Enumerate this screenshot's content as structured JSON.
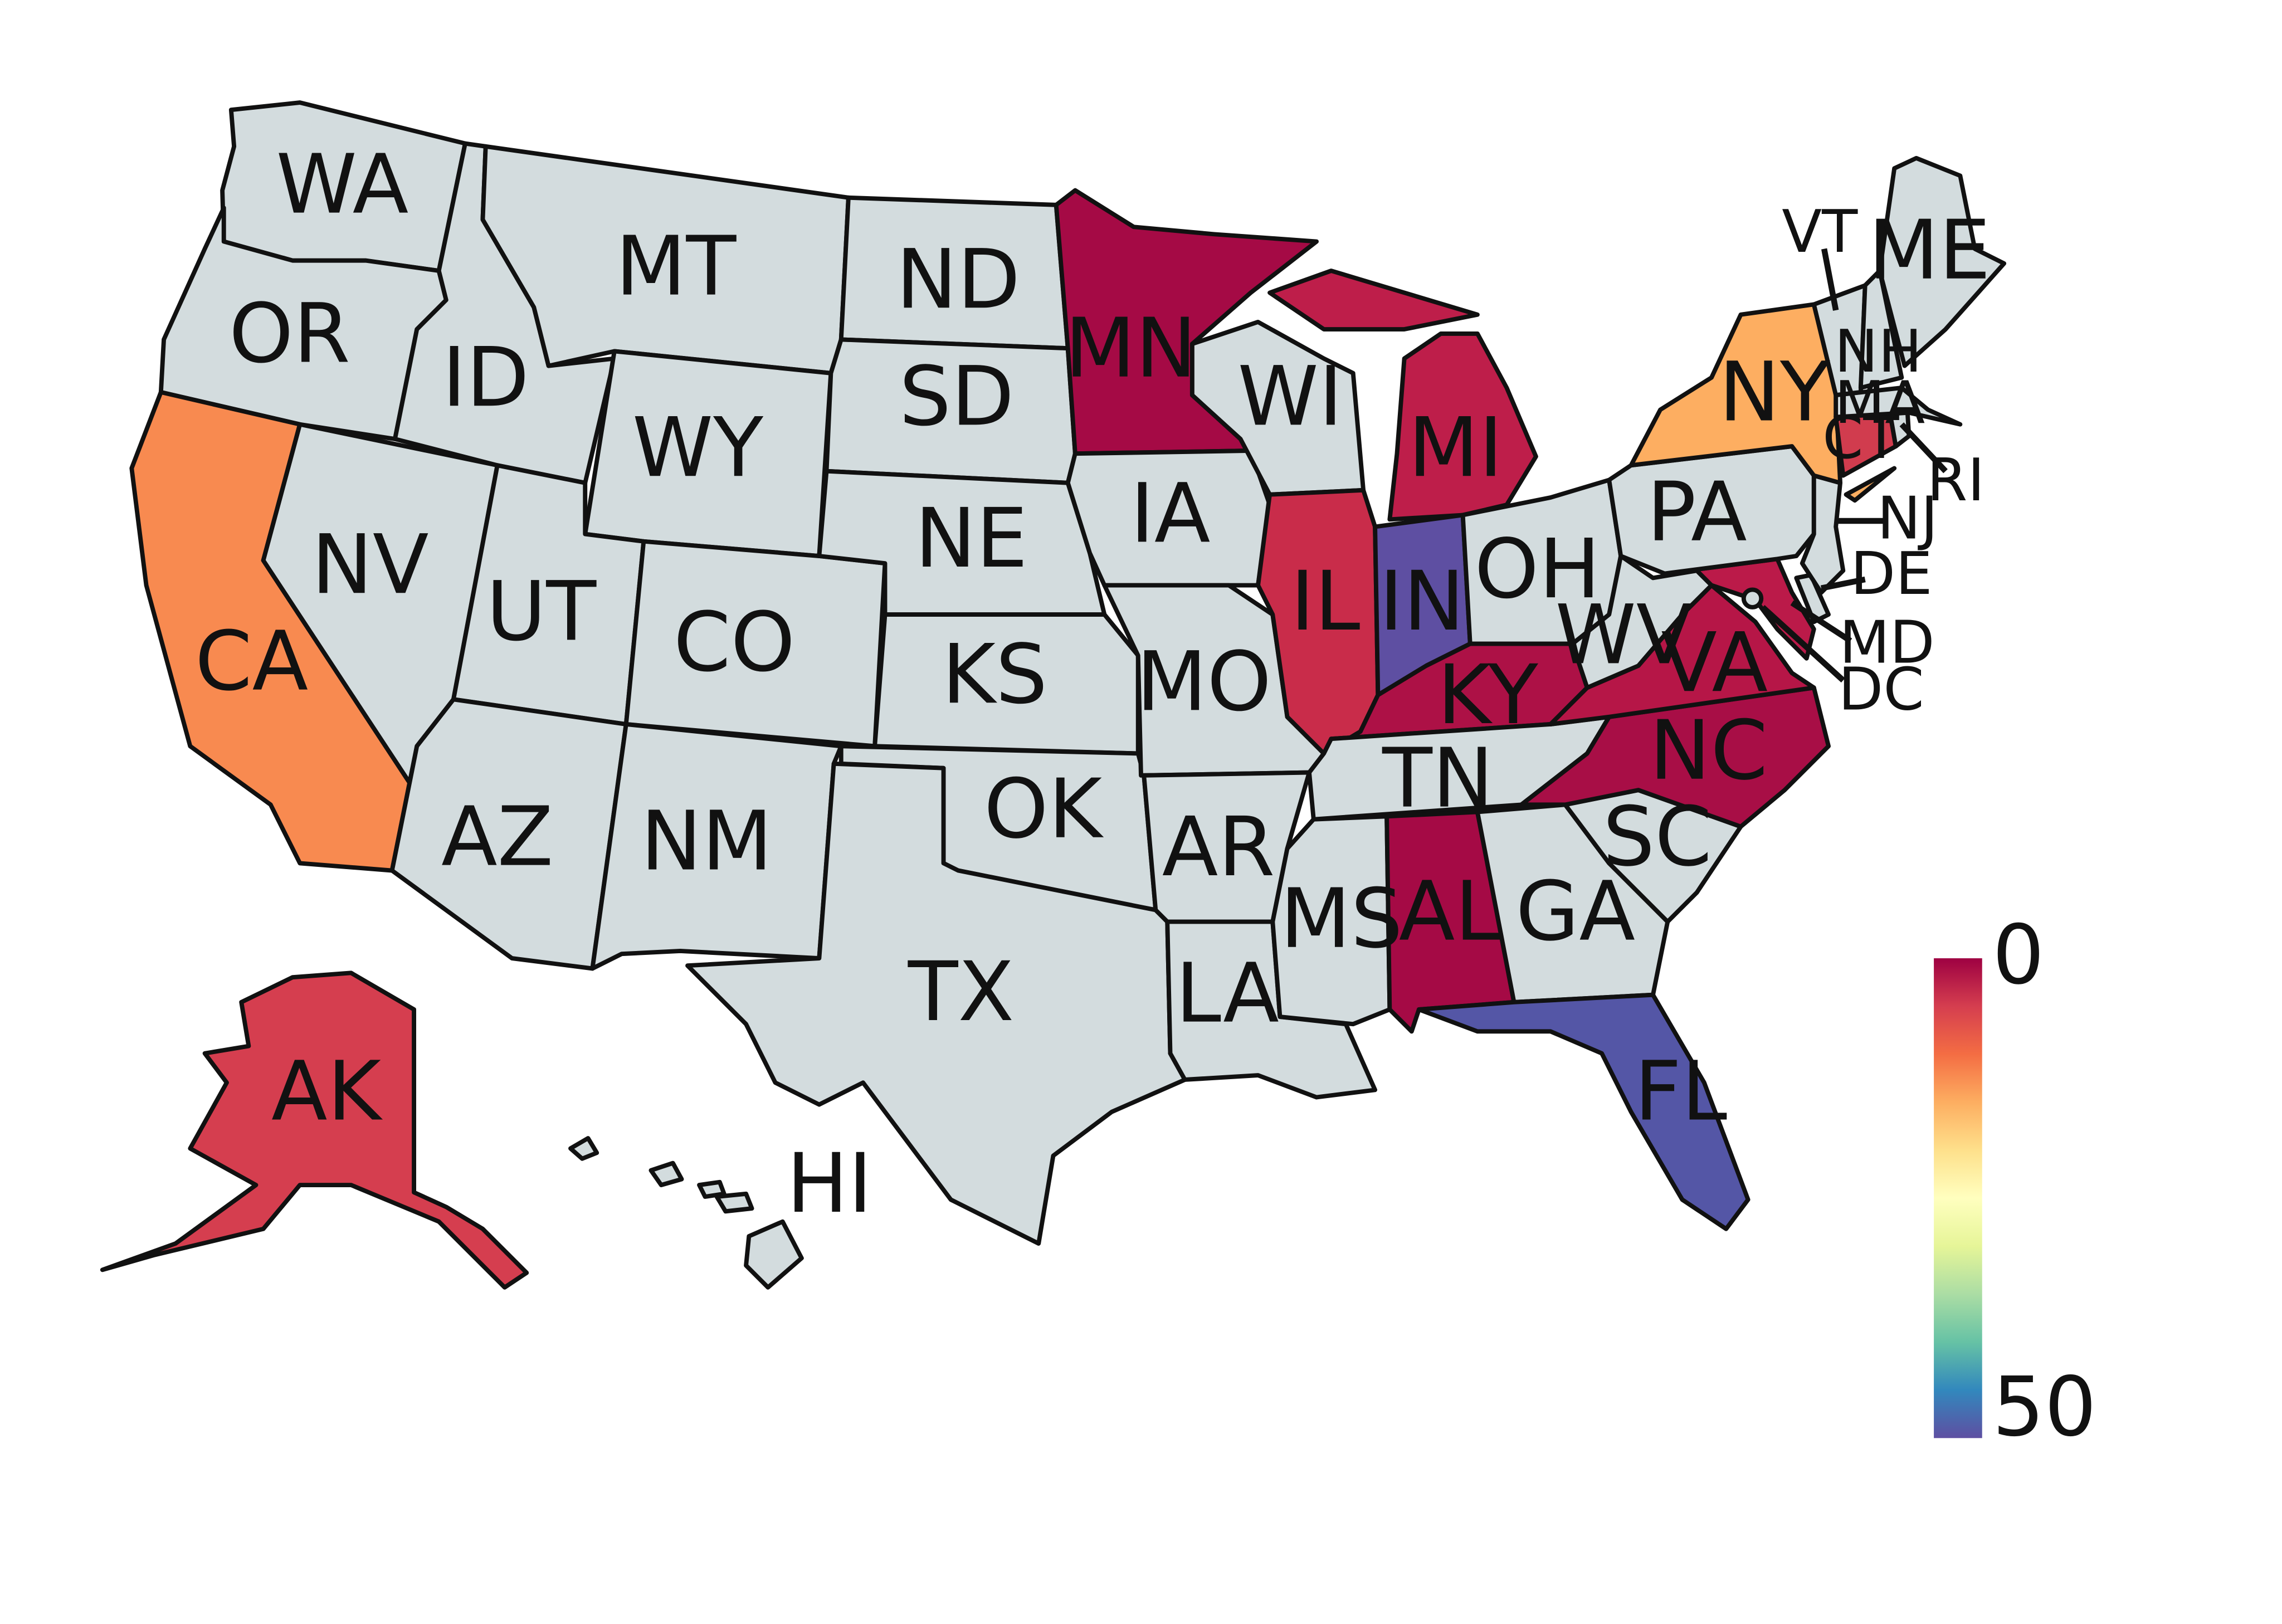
{
  "colors": {
    "no_data": "#d3dcde",
    "stroke": "#111111"
  },
  "legend": {
    "colormap": "Spectral",
    "min_label": "0",
    "max_label": "50",
    "stops": [
      "#9e0142",
      "#d53e4f",
      "#f46d43",
      "#fdae61",
      "#fee08b",
      "#ffffbf",
      "#e6f598",
      "#abdda4",
      "#66c2a5",
      "#3288bd",
      "#5e4fa2"
    ]
  },
  "states": [
    {
      "code": "WA",
      "label": "WA",
      "color": "#d3dcde"
    },
    {
      "code": "OR",
      "label": "OR",
      "color": "#d3dcde"
    },
    {
      "code": "CA",
      "label": "CA",
      "color": "#f88a50"
    },
    {
      "code": "NV",
      "label": "NV",
      "color": "#d3dcde"
    },
    {
      "code": "ID",
      "label": "ID",
      "color": "#d3dcde"
    },
    {
      "code": "MT",
      "label": "MT",
      "color": "#d3dcde"
    },
    {
      "code": "WY",
      "label": "WY",
      "color": "#d3dcde"
    },
    {
      "code": "UT",
      "label": "UT",
      "color": "#d3dcde"
    },
    {
      "code": "AZ",
      "label": "AZ",
      "color": "#d3dcde"
    },
    {
      "code": "CO",
      "label": "CO",
      "color": "#d3dcde"
    },
    {
      "code": "NM",
      "label": "NM",
      "color": "#d3dcde"
    },
    {
      "code": "ND",
      "label": "ND",
      "color": "#d3dcde"
    },
    {
      "code": "SD",
      "label": "SD",
      "color": "#d3dcde"
    },
    {
      "code": "NE",
      "label": "NE",
      "color": "#d3dcde"
    },
    {
      "code": "KS",
      "label": "KS",
      "color": "#d3dcde"
    },
    {
      "code": "OK",
      "label": "OK",
      "color": "#d3dcde"
    },
    {
      "code": "TX",
      "label": "TX",
      "color": "#d3dcde"
    },
    {
      "code": "MN",
      "label": "MN",
      "color": "#a50a45"
    },
    {
      "code": "IA",
      "label": "IA",
      "color": "#d3dcde"
    },
    {
      "code": "MO",
      "label": "MO",
      "color": "#d3dcde"
    },
    {
      "code": "AR",
      "label": "AR",
      "color": "#d3dcde"
    },
    {
      "code": "LA",
      "label": "LA",
      "color": "#d3dcde"
    },
    {
      "code": "WI",
      "label": "WI",
      "color": "#d3dcde"
    },
    {
      "code": "IL",
      "label": "IL",
      "color": "#c92c4a"
    },
    {
      "code": "MI",
      "label": "MI",
      "color": "#be1e4a"
    },
    {
      "code": "IN",
      "label": "IN",
      "color": "#5e4fa2"
    },
    {
      "code": "OH",
      "label": "OH",
      "color": "#d3dcde"
    },
    {
      "code": "KY",
      "label": "KY",
      "color": "#ad1146"
    },
    {
      "code": "TN",
      "label": "TN",
      "color": "#d3dcde"
    },
    {
      "code": "MS",
      "label": "MS",
      "color": "#d3dcde"
    },
    {
      "code": "AL",
      "label": "AL",
      "color": "#a50a45"
    },
    {
      "code": "GA",
      "label": "GA",
      "color": "#d3dcde"
    },
    {
      "code": "FL",
      "label": "FL",
      "color": "#5456a6"
    },
    {
      "code": "SC",
      "label": "SC",
      "color": "#d3dcde"
    },
    {
      "code": "NC",
      "label": "NC",
      "color": "#a80e46"
    },
    {
      "code": "VA",
      "label": "VA",
      "color": "#b61647"
    },
    {
      "code": "WV",
      "label": "WV",
      "color": "#d3dcde"
    },
    {
      "code": "MD",
      "label": "MD",
      "color": "#bb1a49"
    },
    {
      "code": "DE",
      "label": "DE",
      "color": "#d3dcde"
    },
    {
      "code": "DC",
      "label": "DC",
      "color": "#d3dcde"
    },
    {
      "code": "PA",
      "label": "PA",
      "color": "#d3dcde"
    },
    {
      "code": "NJ",
      "label": "NJ",
      "color": "#d3dcde"
    },
    {
      "code": "NY",
      "label": "NY",
      "color": "#fdae61"
    },
    {
      "code": "CT",
      "label": "CT",
      "color": "#d13c4e"
    },
    {
      "code": "RI",
      "label": "RI",
      "color": "#d3dcde"
    },
    {
      "code": "MA",
      "label": "MA",
      "color": "#d3dcde"
    },
    {
      "code": "VT",
      "label": "VT",
      "color": "#d3dcde"
    },
    {
      "code": "NH",
      "label": "NH",
      "color": "#d3dcde"
    },
    {
      "code": "ME",
      "label": "ME",
      "color": "#d3dcde"
    },
    {
      "code": "AK",
      "label": "AK",
      "color": "#d53e4f"
    },
    {
      "code": "HI",
      "label": "HI",
      "color": "#d3dcde"
    }
  ]
}
